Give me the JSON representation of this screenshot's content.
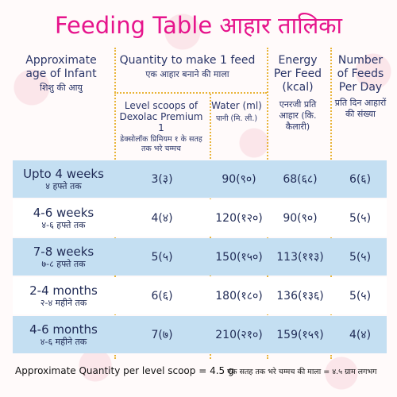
{
  "title": "Feeding Table आहार तालिका",
  "colors": {
    "title": "#e6148c",
    "header_text": "#2a3568",
    "row_blue": "#c4dff2",
    "row_white": "#ffffff",
    "dotted_lines": "#e9b53a"
  },
  "headers": {
    "age": {
      "en": "Approximate age of Infant",
      "hi": "शिशु की आयु"
    },
    "quantity": {
      "en": "Quantity to make 1 feed",
      "hi": "एक आहार बनाने की माला"
    },
    "scoops": {
      "en": "Level scoops of Dexolac Premium 1",
      "hi": "डेक्सोलॉक प्रिमियम १ के सतह तक भरे चम्मच"
    },
    "water": {
      "en": "Water (ml)",
      "hi": "पानी (मि. ली.)"
    },
    "energy": {
      "en": "Energy Per Feed (kcal)",
      "hi": "एनरजी प्रति आहार (कि. कैलारी)"
    },
    "feeds": {
      "en": "Number of Feeds Per Day",
      "hi": "प्रति दिन आहारों की संख्या"
    }
  },
  "rows": [
    {
      "age_en": "Upto 4 weeks",
      "age_hi": "४ हफ्ते तक",
      "scoops": "3(३)",
      "water": "90(९०)",
      "energy": "68(६८)",
      "feeds": "6(६)"
    },
    {
      "age_en": "4-6 weeks",
      "age_hi": "४-६ हफ्ते तक",
      "scoops": "4(४)",
      "water": "120(१२०)",
      "energy": "90(९०)",
      "feeds": "5(५)"
    },
    {
      "age_en": "7-8 weeks",
      "age_hi": "७-८ हफ्ते तक",
      "scoops": "5(५)",
      "water": "150(१५०)",
      "energy": "113(११३)",
      "feeds": "5(५)"
    },
    {
      "age_en": "2-4 months",
      "age_hi": "२-४ महीने तक",
      "scoops": "6(६)",
      "water": "180(१८०)",
      "energy": "136(१३६)",
      "feeds": "5(५)"
    },
    {
      "age_en": "4-6 months",
      "age_hi": "४-६ महीने तक",
      "scoops": "7(७)",
      "water": "210(२१०)",
      "energy": "159(१५९)",
      "feeds": "4(४)"
    }
  ],
  "footer": {
    "left": "Approximate Quantity per level scoop = 4.5 g",
    "right": "एक सतह तक भरे चम्मच की माला = ४.५ ग्राम लगभग"
  }
}
